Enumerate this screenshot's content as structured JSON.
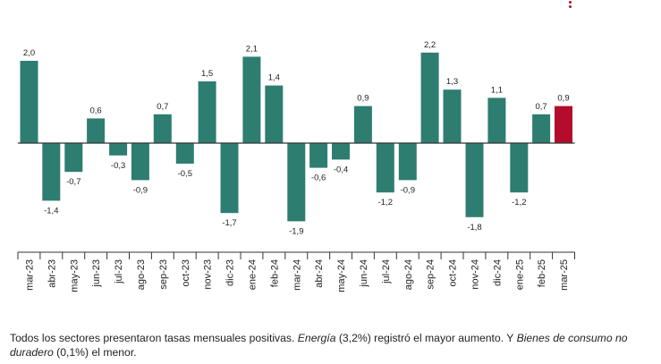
{
  "chart_data": {
    "type": "bar",
    "categories": [
      "mar-23",
      "abr-23",
      "may-23",
      "jun-23",
      "jul-23",
      "ago-23",
      "sep-23",
      "oct-23",
      "nov-23",
      "dic-23",
      "ene-24",
      "feb-24",
      "mar-24",
      "abr-24",
      "may-24",
      "jun-24",
      "jul-24",
      "ago-24",
      "sep-24",
      "oct-24",
      "nov-24",
      "dic-24",
      "ene-25",
      "feb-25",
      "mar-25"
    ],
    "values": [
      2.0,
      -1.4,
      -0.7,
      0.6,
      -0.3,
      -0.9,
      0.7,
      -0.5,
      1.5,
      -1.7,
      2.1,
      1.4,
      -1.9,
      -0.6,
      -0.4,
      0.9,
      -1.2,
      -0.9,
      2.2,
      1.3,
      -1.8,
      1.1,
      -1.2,
      0.7,
      0.9
    ],
    "value_labels": [
      "2,0",
      "-1,4",
      "-0,7",
      "0,6",
      "-0,3",
      "-0,9",
      "0,7",
      "-0,5",
      "1,5",
      "-1,7",
      "2,1",
      "1,4",
      "-1,9",
      "-0,6",
      "-0,4",
      "0,9",
      "-1,2",
      "-0,9",
      "2,2",
      "1,3",
      "-1,8",
      "1,1",
      "-1,2",
      "0,7",
      "0,9"
    ],
    "highlight_index": 24,
    "colors": {
      "bar": "#2e7d71",
      "highlight": "#b40d2b",
      "axis": "#333333"
    },
    "ylim": [
      -2.2,
      2.4
    ],
    "grid": false,
    "title": "",
    "xlabel": "",
    "ylabel": ""
  },
  "menu": {
    "icon": "vertical-dots-icon",
    "color": "#b40d2b"
  },
  "footnote": {
    "part1": "Todos los sectores presentaron tasas mensuales positivas. ",
    "emph1": "Energía",
    "part2": " (3,2%) registró el mayor aumento. Y ",
    "emph2": "Bienes de consumo no duradero",
    "part3": " (0,1%) el menor."
  }
}
